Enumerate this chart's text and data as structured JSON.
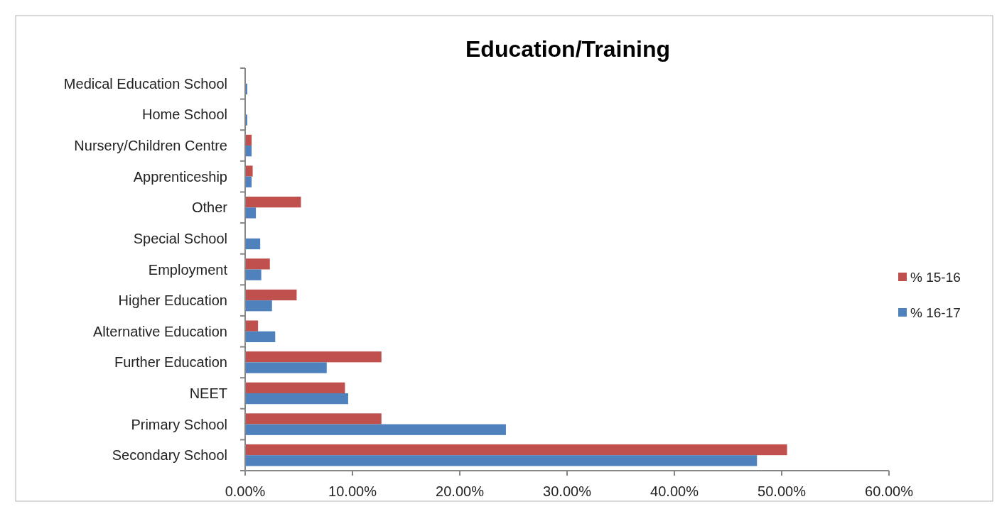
{
  "chart_data": {
    "type": "bar",
    "orientation": "horizontal",
    "title": "Education/Training",
    "categories": [
      "Medical Education School",
      "Home School",
      "Nursery/Children Centre",
      "Apprenticeship",
      "Other",
      "Special School",
      "Employment",
      "Higher Education",
      "Alternative Education",
      "Further Education",
      "NEET",
      "Primary School",
      "Secondary School"
    ],
    "series": [
      {
        "name": "% 15-16",
        "color": "#c0504d",
        "values": [
          0,
          0,
          0.6,
          0.7,
          5.2,
          0,
          2.3,
          4.8,
          1.2,
          12.7,
          9.3,
          12.7,
          50.5
        ]
      },
      {
        "name": "% 16-17",
        "color": "#4f81bd",
        "values": [
          0.2,
          0.2,
          0.6,
          0.6,
          1.0,
          1.4,
          1.5,
          2.5,
          2.8,
          7.6,
          9.6,
          24.3,
          47.7
        ]
      }
    ],
    "xlim": [
      0,
      60
    ],
    "xticks": [
      {
        "value": 0,
        "label": "0.00%"
      },
      {
        "value": 10,
        "label": "10.00%"
      },
      {
        "value": 20,
        "label": "20.00%"
      },
      {
        "value": 30,
        "label": "30.00%"
      },
      {
        "value": 40,
        "label": "40.00%"
      },
      {
        "value": 50,
        "label": "50.00%"
      },
      {
        "value": 60,
        "label": "60.00%"
      }
    ],
    "legend": "right",
    "grid": false
  }
}
